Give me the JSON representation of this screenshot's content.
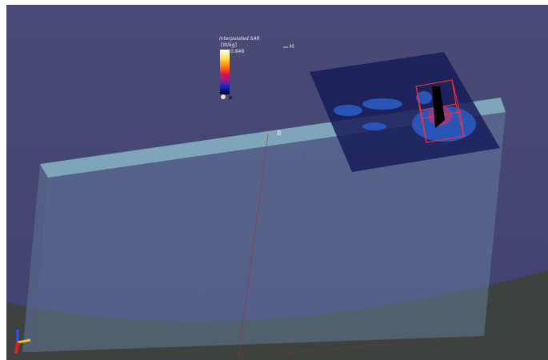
{
  "legend": {
    "title": "Interpolated SAR",
    "unit": "[W/kg]",
    "max": 0.848
  },
  "labels": {
    "h": "H",
    "b": "B"
  }
}
